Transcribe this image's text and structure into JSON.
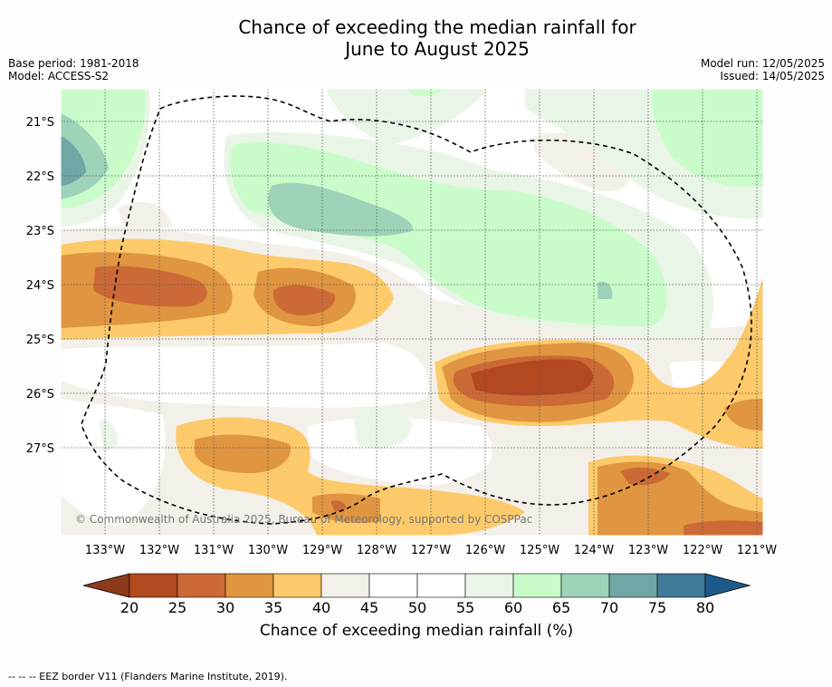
{
  "title_line1": "Chance of exceeding the median rainfall for",
  "title_line2": "June to August 2025",
  "base_period": "Base period: 1981-2018",
  "model": "Model: ACCESS-S2",
  "model_run": "Model run: 12/05/2025",
  "issued": "Issued: 14/05/2025",
  "copyright": "© Commonwealth of Australia 2025, Bureau of Meteorology, supported by COSPPac",
  "lon_labels": [
    "133°W",
    "132°W",
    "131°W",
    "130°W",
    "129°W",
    "128°W",
    "127°W",
    "126°W",
    "125°W",
    "124°W",
    "123°W",
    "122°W",
    "121°W"
  ],
  "lat_labels": [
    "21°S",
    "22°S",
    "23°S",
    "24°S",
    "25°S",
    "26°S",
    "27°S"
  ],
  "colorbar": {
    "ticks": [
      "20",
      "25",
      "30",
      "35",
      "40",
      "45",
      "50",
      "55",
      "60",
      "65",
      "70",
      "75",
      "80"
    ],
    "colors": [
      "#b2491f",
      "#cc6a37",
      "#e09540",
      "#fcca6a",
      "#f3efe9",
      "#ffffff",
      "#ffffff",
      "#e9f5e6",
      "#c9fcc9",
      "#9dd3b9",
      "#6fa6a6",
      "#3f7a98"
    ],
    "low_extend_color": "#8c3a1c",
    "high_extend_color": "#1d5a8c",
    "label": "Chance of exceeding median rainfall (%)"
  },
  "footnote": "--  --  -- EEZ border V11 (Flanders Marine Institute, 2019)."
}
